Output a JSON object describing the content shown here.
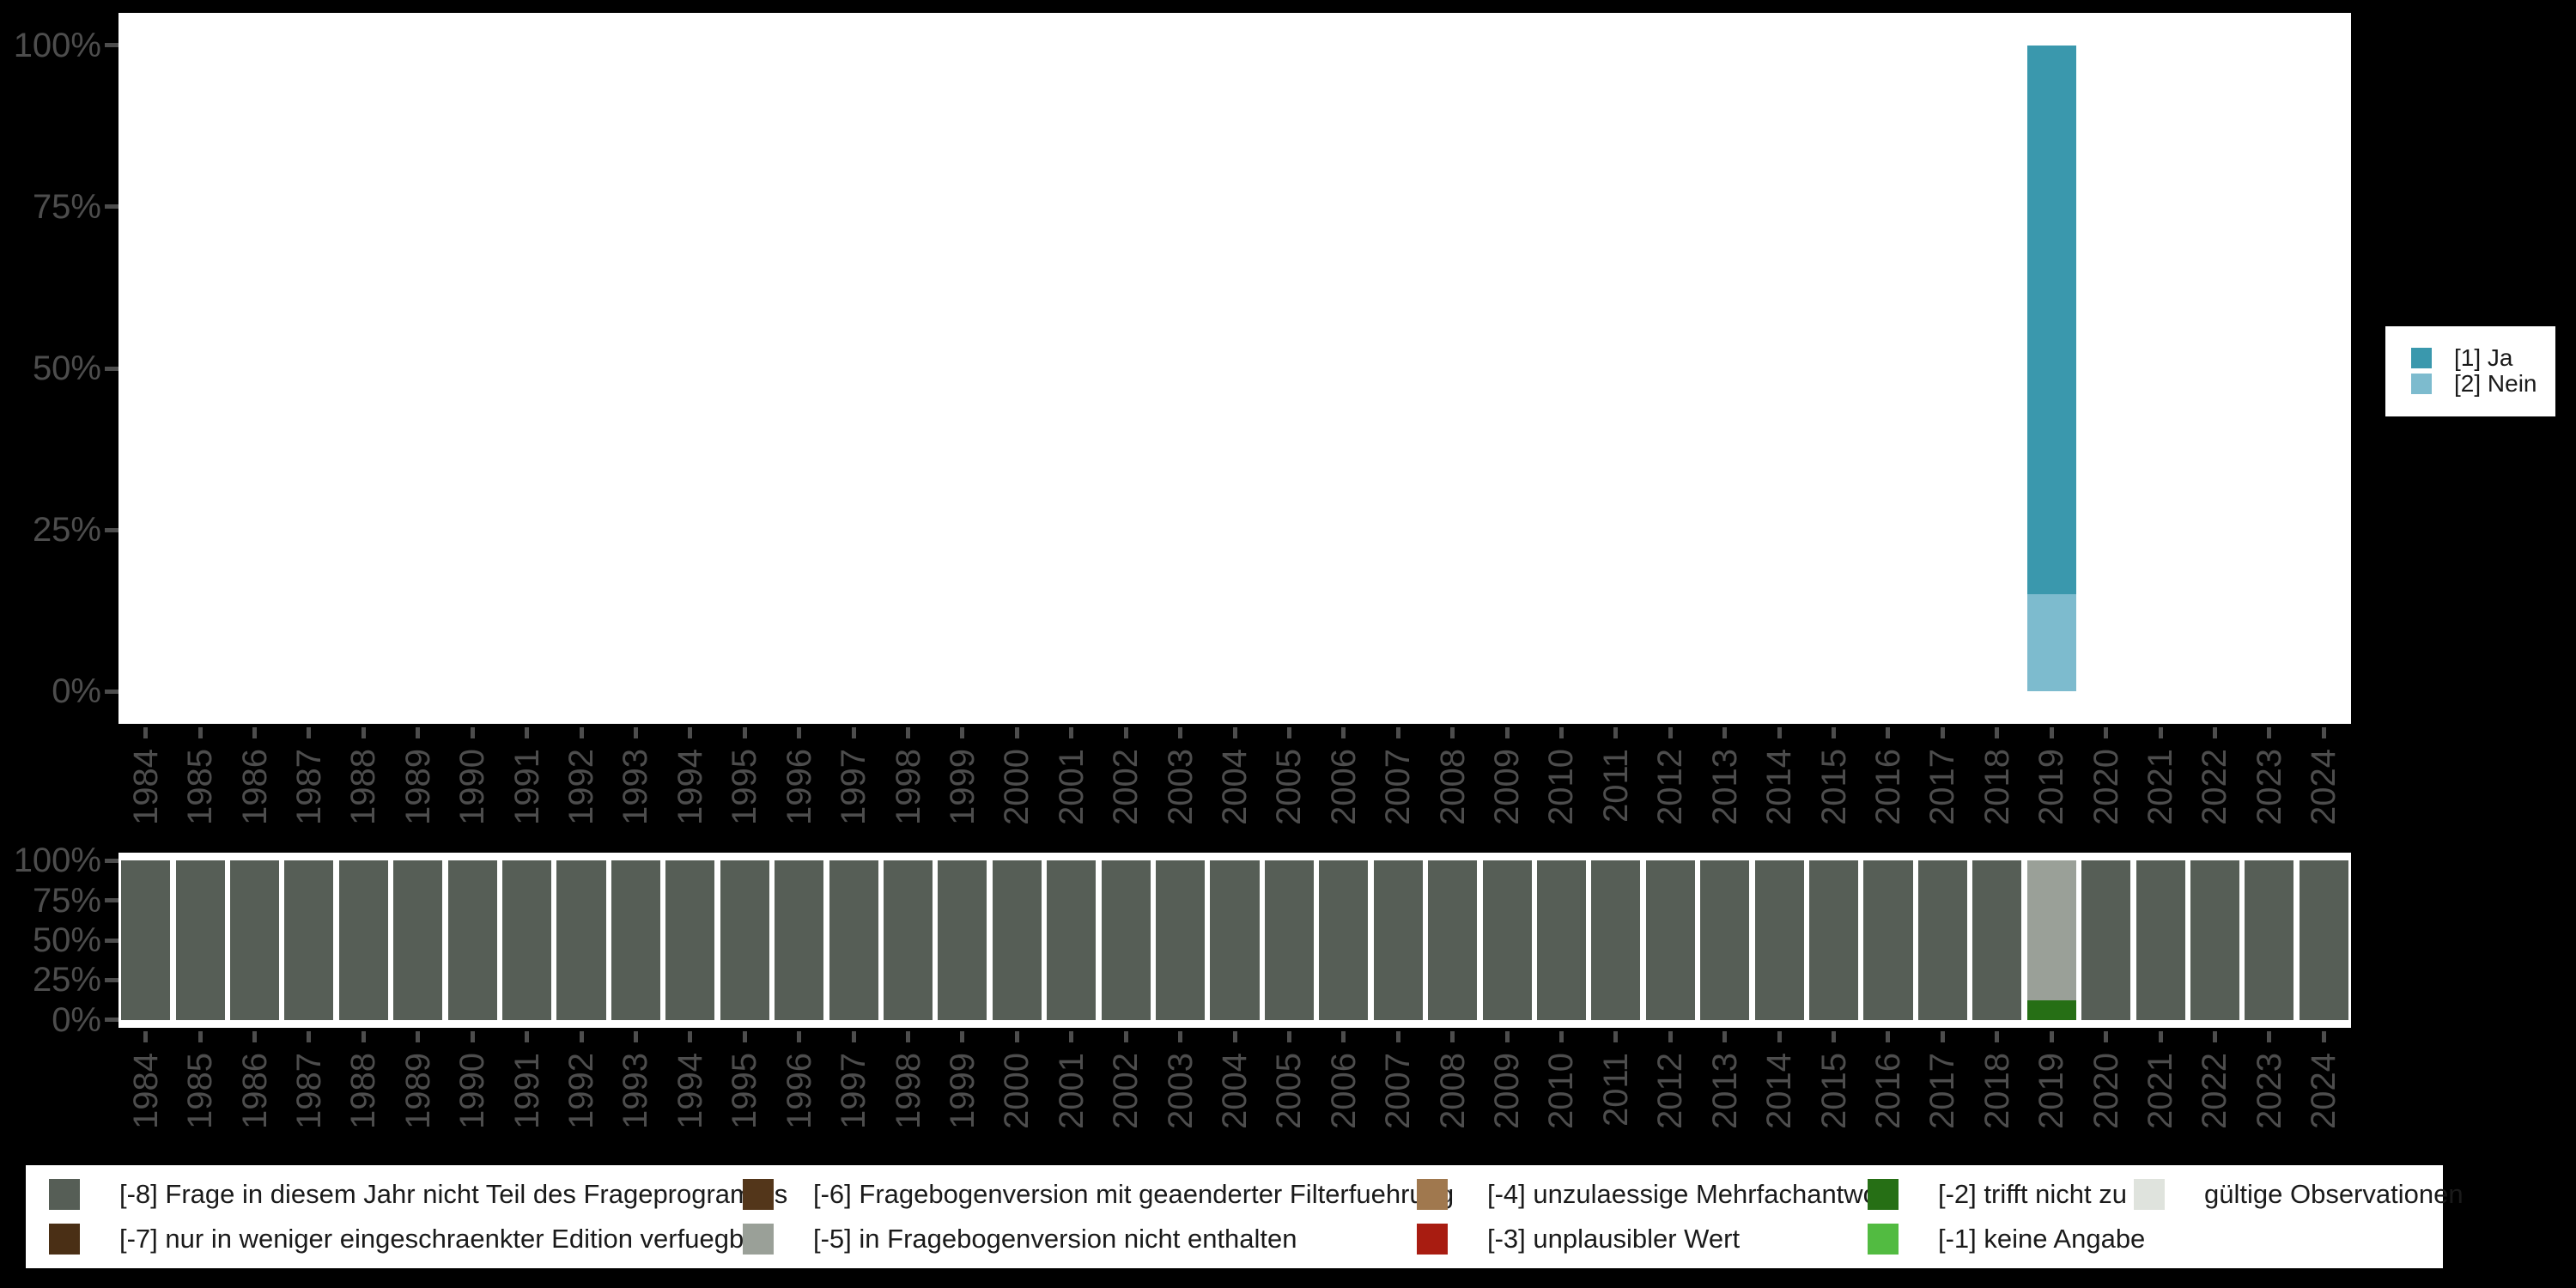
{
  "figure": {
    "background": "#000000",
    "plot_background": "#ffffff",
    "axis_text_color": "#4d4d4d"
  },
  "axis": {
    "percent_ticks": [
      "100%",
      "75%",
      "50%",
      "25%",
      "0%"
    ],
    "years": [
      "1984",
      "1985",
      "1986",
      "1987",
      "1988",
      "1989",
      "1990",
      "1991",
      "1992",
      "1993",
      "1994",
      "1995",
      "1996",
      "1997",
      "1998",
      "1999",
      "2000",
      "2001",
      "2002",
      "2003",
      "2004",
      "2005",
      "2006",
      "2007",
      "2008",
      "2009",
      "2010",
      "2011",
      "2012",
      "2013",
      "2014",
      "2015",
      "2016",
      "2017",
      "2018",
      "2019",
      "2020",
      "2021",
      "2022",
      "2023",
      "2024"
    ]
  },
  "legend_answers": {
    "items": [
      {
        "label": "[1] Ja",
        "color": "#3a98ad"
      },
      {
        "label": "[2] Nein",
        "color": "#7dbbce"
      }
    ]
  },
  "legend_missing": {
    "items": [
      {
        "label": "[-8] Frage in diesem Jahr nicht Teil des Frageprogramms",
        "color": "#565e56"
      },
      {
        "label": "[-7] nur in weniger eingeschraenkter Edition verfuegbar",
        "color": "#4a2f15"
      },
      {
        "label": "[-6] Fragebogenversion mit geaenderter Filterfuehrung",
        "color": "#53361a"
      },
      {
        "label": "[-5] in Fragebogenversion nicht enthalten",
        "color": "#9aa098"
      },
      {
        "label": "[-4] unzulaessige Mehrfachantwort",
        "color": "#a0784e"
      },
      {
        "label": "[-3] unplausibler Wert",
        "color": "#a81c11"
      },
      {
        "label": "[-2] trifft nicht zu",
        "color": "#266f15"
      },
      {
        "label": "[-1] keine Angabe",
        "color": "#52bb41"
      },
      {
        "label": "gültige Observationen",
        "color": "#dfe3dd"
      }
    ]
  },
  "chart_data": [
    {
      "type": "bar",
      "stacked": true,
      "title": "",
      "xlabel": "",
      "ylabel": "",
      "ylim": [
        0,
        100
      ],
      "grid": false,
      "legend_position": "right",
      "categories": [
        "1984",
        "1985",
        "1986",
        "1987",
        "1988",
        "1989",
        "1990",
        "1991",
        "1992",
        "1993",
        "1994",
        "1995",
        "1996",
        "1997",
        "1998",
        "1999",
        "2000",
        "2001",
        "2002",
        "2003",
        "2004",
        "2005",
        "2006",
        "2007",
        "2008",
        "2009",
        "2010",
        "2011",
        "2012",
        "2013",
        "2014",
        "2015",
        "2016",
        "2017",
        "2018",
        "2019",
        "2020",
        "2021",
        "2022",
        "2023",
        "2024"
      ],
      "values_note": "percent of valid answers; every year uses 'default' unless listed in values_by_year; series[0] is drawn on top of the stack",
      "series": [
        {
          "name": "[1] Ja",
          "color": "#3a98ad",
          "default": 0,
          "values_by_year": {
            "2019": 85
          }
        },
        {
          "name": "[2] Nein",
          "color": "#7dbbce",
          "default": 0,
          "values_by_year": {
            "2019": 15
          }
        }
      ]
    },
    {
      "type": "bar",
      "stacked": true,
      "title": "",
      "xlabel": "",
      "ylabel": "",
      "ylim": [
        0,
        100
      ],
      "grid": false,
      "legend_position": "bottom",
      "categories": [
        "1984",
        "1985",
        "1986",
        "1987",
        "1988",
        "1989",
        "1990",
        "1991",
        "1992",
        "1993",
        "1994",
        "1995",
        "1996",
        "1997",
        "1998",
        "1999",
        "2000",
        "2001",
        "2002",
        "2003",
        "2004",
        "2005",
        "2006",
        "2007",
        "2008",
        "2009",
        "2010",
        "2011",
        "2012",
        "2013",
        "2014",
        "2015",
        "2016",
        "2017",
        "2018",
        "2019",
        "2020",
        "2021",
        "2022",
        "2023",
        "2024"
      ],
      "values_note": "percent of all observations (missing codes); every year uses 'default' unless listed in values_by_year; series[0] is drawn on top of the stack",
      "series": [
        {
          "name": "[-8] Frage in diesem Jahr nicht Teil des Frageprogramms",
          "color": "#565e56",
          "default": 100,
          "values_by_year": {
            "2019": 0
          }
        },
        {
          "name": "[-5] in Fragebogenversion nicht enthalten",
          "color": "#9aa098",
          "default": 0,
          "values_by_year": {
            "2019": 87.5
          }
        },
        {
          "name": "[-2] trifft nicht zu",
          "color": "#266f15",
          "default": 0,
          "values_by_year": {
            "2019": 12.5
          }
        }
      ]
    }
  ]
}
